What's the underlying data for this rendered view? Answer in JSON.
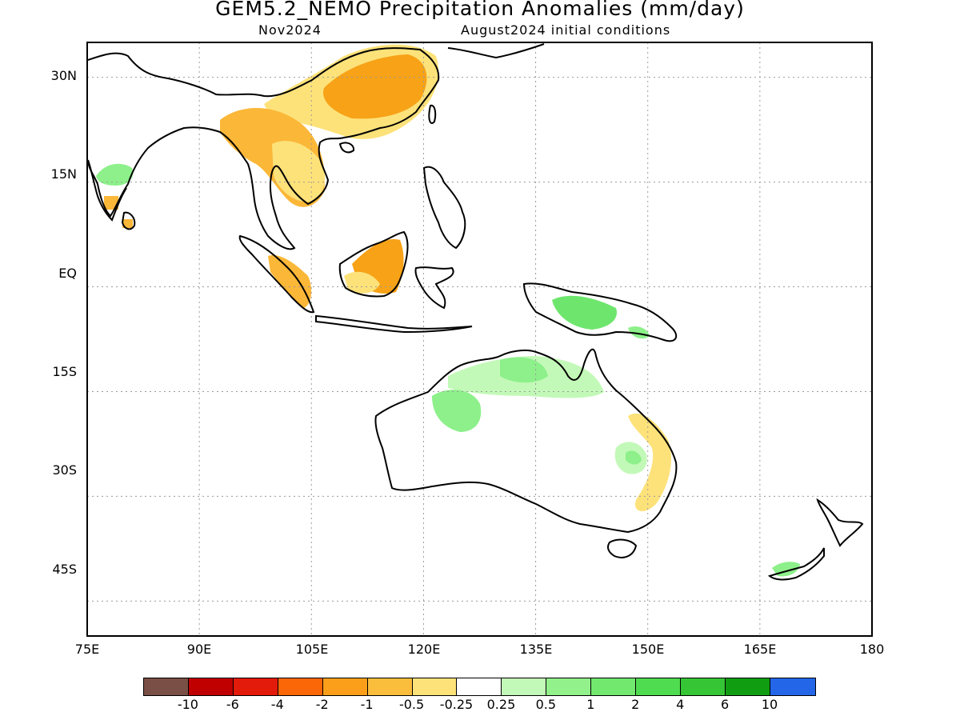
{
  "title": "GEM5.2_NEMO Precipitation Anomalies (mm/day)",
  "subtitle_left": "Nov2024",
  "subtitle_right": "August2024 initial conditions",
  "map": {
    "lon_range": [
      75,
      180
    ],
    "lat_range": [
      -50,
      35
    ],
    "lat_labels": [
      "30N",
      "15N",
      "EQ",
      "15S",
      "30S",
      "45S"
    ],
    "lon_labels": [
      "75E",
      "90E",
      "105E",
      "120E",
      "135E",
      "150E",
      "165E",
      "180"
    ],
    "colors": {
      "coast": "#000000",
      "grid": "#9a9a9a",
      "dry1": "#fde27a",
      "dry2": "#fbb738",
      "dry3": "#f7a217",
      "wet1": "#c3f9b8",
      "wet2": "#8df08a",
      "wet3": "#6ee66e"
    }
  },
  "colorbar": {
    "colors": [
      "#7a4f45",
      "#c00000",
      "#e31b0b",
      "#fb6607",
      "#fb9f1a",
      "#fbbd3c",
      "#fde27a",
      "#ffffff",
      "#c3f9b8",
      "#92f18a",
      "#72e86e",
      "#50dc50",
      "#35c535",
      "#109d12",
      "#2466e8"
    ],
    "labels": [
      "-10",
      "-6",
      "-4",
      "-2",
      "-1",
      "-0.5",
      "-0.25",
      "0.25",
      "0.5",
      "1",
      "2",
      "4",
      "6",
      "10"
    ]
  }
}
